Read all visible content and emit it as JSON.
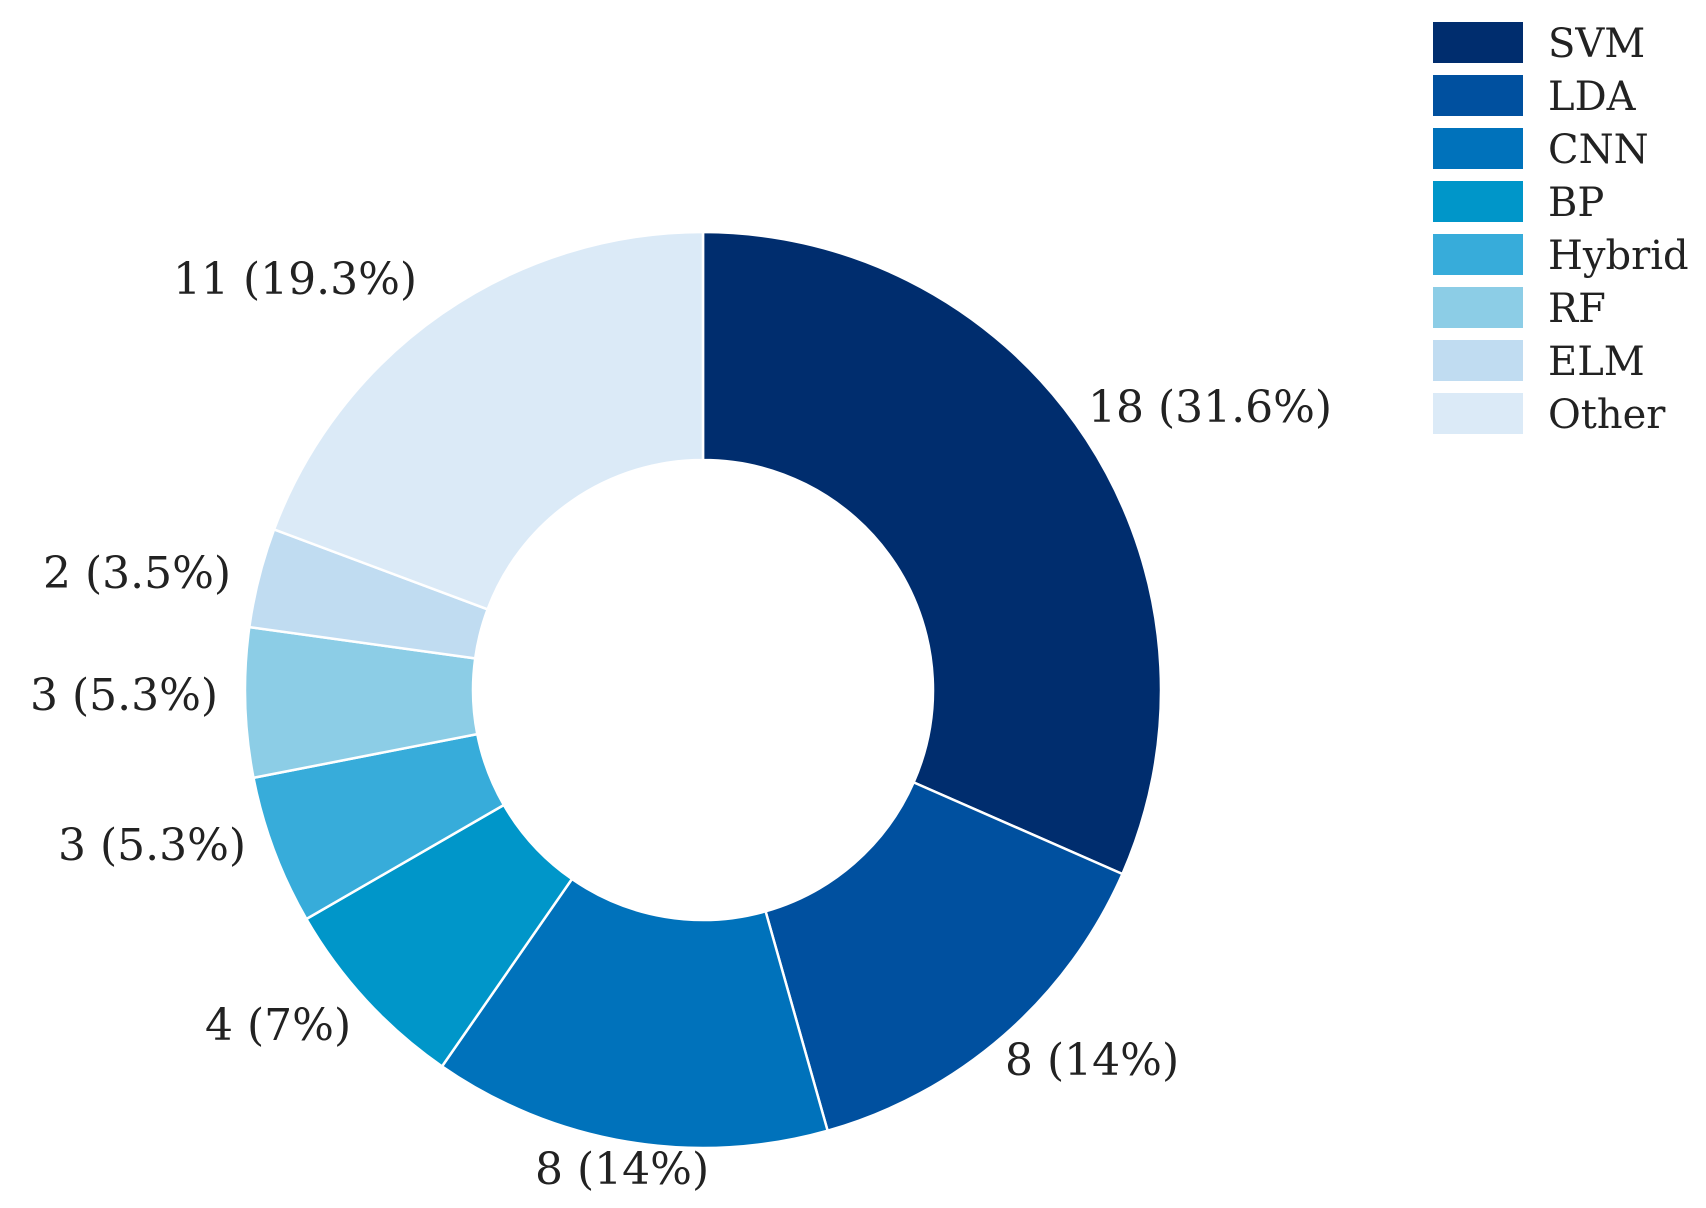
{
  "chart_data": {
    "type": "pie",
    "variant": "donut",
    "legend_position": "top-right",
    "slices": [
      {
        "label": "SVM",
        "value": 18,
        "display": "18 (31.6%)",
        "color": "#002d6e"
      },
      {
        "label": "LDA",
        "value": 8,
        "display": "8 (14%)",
        "color": "#00509f"
      },
      {
        "label": "CNN",
        "value": 8,
        "display": "8 (14%)",
        "color": "#0072bb"
      },
      {
        "label": "BP",
        "value": 4,
        "display": "4 (7%)",
        "color": "#0096c9"
      },
      {
        "label": "Hybrid",
        "value": 3,
        "display": "3 (5.3%)",
        "color": "#37acda"
      },
      {
        "label": "RF",
        "value": 3,
        "display": "3 (5.3%)",
        "color": "#8ccde6"
      },
      {
        "label": "ELM",
        "value": 2,
        "display": "2 (3.5%)",
        "color": "#c0dcf1"
      },
      {
        "label": "Other",
        "value": 11,
        "display": "11 (19.3%)",
        "color": "#dbeaf7"
      }
    ]
  }
}
